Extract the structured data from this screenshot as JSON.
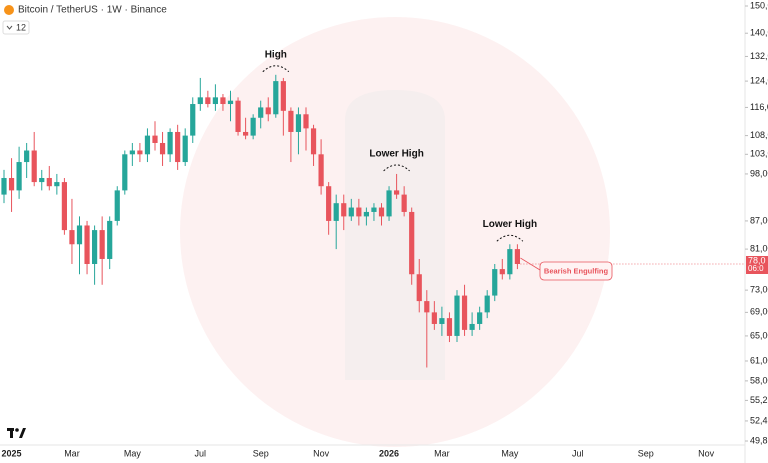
{
  "chart_data": {
    "type": "candlestick",
    "title": "Bitcoin / TetherUS · 1W · Binance",
    "indicator_count": "12",
    "log_scale": true,
    "up_color": "#26a69a",
    "down_color": "#e8545c",
    "ylim": [
      49300,
      152300
    ],
    "yticks": [
      {
        "value": 150000,
        "label": "150,0"
      },
      {
        "value": 140000,
        "label": "140,0"
      },
      {
        "value": 132000,
        "label": "132,0"
      },
      {
        "value": 124000,
        "label": "124,0"
      },
      {
        "value": 116000,
        "label": "116,0"
      },
      {
        "value": 108000,
        "label": "108,0"
      },
      {
        "value": 103000,
        "label": "103,0"
      },
      {
        "value": 98000,
        "label": "98,00"
      },
      {
        "value": 87000,
        "label": "87,00"
      },
      {
        "value": 81000,
        "label": "81,00"
      },
      {
        "value": 73000,
        "label": "73,00"
      },
      {
        "value": 69000,
        "label": "69,00"
      },
      {
        "value": 65000,
        "label": "65,00"
      },
      {
        "value": 61000,
        "label": "61,00"
      },
      {
        "value": 58000,
        "label": "58,00"
      },
      {
        "value": 55200,
        "label": "55,2"
      },
      {
        "value": 52400,
        "label": "52,4"
      },
      {
        "value": 49800,
        "label": "49,8"
      }
    ],
    "last_price_label": "78,0",
    "countdown_label": "06:0",
    "categories": [
      null,
      "2025",
      null,
      null,
      null,
      null,
      null,
      null,
      null,
      "Mar",
      null,
      null,
      null,
      null,
      null,
      null,
      null,
      "May",
      null,
      null,
      null,
      null,
      null,
      null,
      null,
      null,
      "Jul",
      null,
      null,
      null,
      null,
      null,
      null,
      null,
      "Sep",
      null,
      null,
      null,
      null,
      null,
      null,
      null,
      "Nov",
      null,
      null,
      null,
      null,
      null,
      null,
      null,
      null,
      "2026",
      null,
      null,
      null,
      null,
      null,
      null,
      "Mar",
      null,
      null,
      null,
      null,
      null,
      null,
      null,
      null,
      "May",
      null,
      null,
      null,
      null,
      null,
      null,
      null,
      null,
      "Jul",
      null,
      null,
      null,
      null,
      null,
      null,
      null,
      null,
      "Sep",
      null,
      null,
      null,
      null,
      null,
      null,
      null,
      "Nov",
      null
    ],
    "open": [
      93000,
      97000,
      94000,
      101000,
      104000,
      96000,
      97000,
      95000,
      96000,
      85000,
      82000,
      86000,
      78000,
      85000,
      79000,
      87000,
      94000,
      103000,
      104000,
      103000,
      108000,
      106000,
      103000,
      109000,
      101000,
      108000,
      117000,
      119000,
      117000,
      119000,
      117000,
      118000,
      109000,
      108000,
      113000,
      116000,
      114000,
      124000,
      115000,
      109000,
      114000,
      110000,
      103000,
      95000,
      87000,
      91000,
      88000,
      90000,
      88000,
      89000,
      90000,
      88000,
      94000,
      93000,
      89000,
      76000,
      71000,
      69000,
      67000,
      68000,
      65000,
      72000,
      66000,
      67000,
      69000,
      72000,
      77000,
      76000,
      81000,
      null,
      null,
      null,
      null,
      null,
      null,
      null,
      null,
      null,
      null,
      null,
      null,
      null,
      null,
      null,
      null,
      null,
      null,
      null,
      null,
      null,
      null,
      null,
      null,
      null,
      null
    ],
    "high": [
      99000,
      102000,
      105000,
      106000,
      109000,
      99000,
      100000,
      98000,
      97000,
      92000,
      88000,
      87000,
      86000,
      88000,
      88000,
      95000,
      104000,
      106000,
      106000,
      110000,
      112000,
      109000,
      110000,
      111000,
      110000,
      119000,
      125000,
      121000,
      123000,
      120000,
      121000,
      119000,
      113000,
      114000,
      118000,
      119000,
      126000,
      125000,
      116000,
      116000,
      116000,
      111000,
      107000,
      96000,
      93000,
      93000,
      92000,
      92000,
      90000,
      91000,
      91000,
      95000,
      98000,
      95000,
      90000,
      79000,
      73000,
      71000,
      70000,
      69000,
      73000,
      74000,
      69000,
      70000,
      73000,
      78000,
      79000,
      82000,
      82000,
      null,
      null,
      null,
      null,
      null,
      null,
      null,
      null,
      null,
      null,
      null,
      null,
      null,
      null,
      null,
      null,
      null,
      null,
      null,
      null,
      null,
      null,
      null,
      null,
      null,
      null
    ],
    "low": [
      91000,
      89000,
      92000,
      97000,
      95000,
      94000,
      94000,
      93000,
      84000,
      78000,
      76000,
      76000,
      74000,
      74000,
      77000,
      86000,
      93000,
      100000,
      101000,
      101000,
      104000,
      100000,
      101000,
      99000,
      100000,
      106000,
      115000,
      116000,
      115000,
      115000,
      112000,
      108000,
      107000,
      107000,
      110000,
      112000,
      113000,
      108000,
      101000,
      103000,
      104000,
      100000,
      93000,
      84000,
      81000,
      85000,
      87000,
      86000,
      86000,
      87000,
      86000,
      87000,
      92000,
      88000,
      74000,
      69000,
      60000,
      66000,
      65000,
      64000,
      64000,
      65000,
      65000,
      66000,
      68000,
      71000,
      75000,
      75000,
      77000,
      null,
      null,
      null,
      null,
      null,
      null,
      null,
      null,
      null,
      null,
      null,
      null,
      null,
      null,
      null,
      null,
      null,
      null,
      null,
      null,
      null,
      null,
      null,
      null,
      null,
      null
    ],
    "close": [
      97000,
      94000,
      101000,
      104000,
      96000,
      97000,
      95000,
      96000,
      85000,
      82000,
      86000,
      78000,
      85000,
      79000,
      87000,
      94000,
      103000,
      104000,
      103000,
      108000,
      106000,
      103000,
      109000,
      101000,
      108000,
      117000,
      119000,
      117000,
      119000,
      117000,
      118000,
      109000,
      108000,
      113000,
      116000,
      114000,
      124000,
      115000,
      109000,
      114000,
      110000,
      103000,
      95000,
      87000,
      91000,
      88000,
      90000,
      88000,
      89000,
      90000,
      88000,
      94000,
      93000,
      89000,
      76000,
      71000,
      69000,
      67000,
      68000,
      65000,
      72000,
      66000,
      67000,
      69000,
      72000,
      77000,
      76000,
      81000,
      78000,
      null,
      null,
      null,
      null,
      null,
      null,
      null,
      null,
      null,
      null,
      null,
      null,
      null,
      null,
      null,
      null,
      null,
      null,
      null,
      null,
      null,
      null,
      null,
      null,
      null,
      null
    ],
    "annotations": [
      "High",
      "Lower High",
      "Lower High",
      "Bearish Engulfing"
    ]
  }
}
